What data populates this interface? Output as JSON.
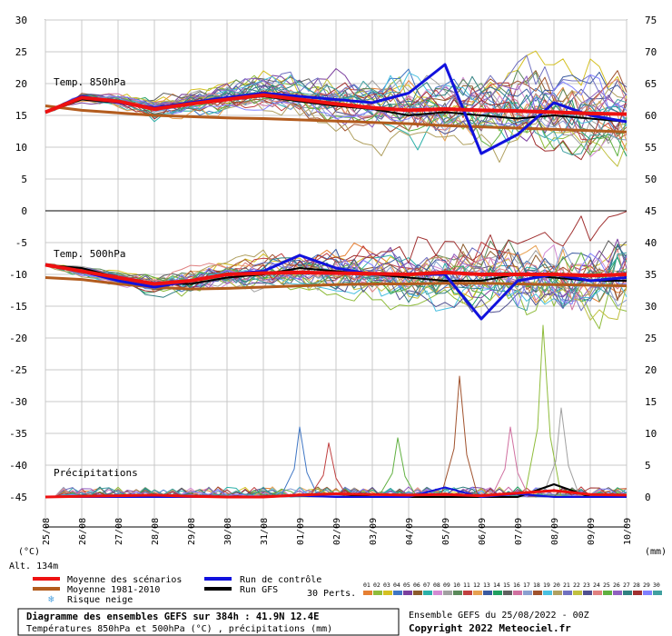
{
  "chart_data": {
    "type": "line",
    "dates": [
      "25/08",
      "26/08",
      "27/08",
      "28/08",
      "29/08",
      "30/08",
      "31/08",
      "01/09",
      "02/09",
      "03/09",
      "04/09",
      "05/09",
      "06/09",
      "07/09",
      "08/09",
      "09/09",
      "10/09"
    ],
    "left_axis": {
      "unit_label": "(°C)",
      "ticks": [
        30,
        25,
        20,
        15,
        10,
        5,
        0,
        -5,
        -10,
        -15,
        -20,
        -25,
        -30,
        -35,
        -40,
        -45
      ],
      "range": [
        -45,
        30
      ]
    },
    "right_axis": {
      "unit_label": "(mm)",
      "upper_ticks": [
        75,
        70,
        65,
        60,
        55,
        50,
        45
      ],
      "middle_ticks": [
        40,
        35,
        30,
        25,
        20,
        15,
        10,
        5,
        0
      ]
    },
    "panels": [
      {
        "label": "Temp. 850hPa",
        "unit": "°C",
        "mean": [
          15.5,
          17.8,
          17.2,
          16.0,
          16.8,
          17.5,
          18.2,
          17.5,
          16.8,
          16.2,
          15.8,
          16.0,
          15.8,
          15.7,
          15.5,
          15.3,
          15.2
        ],
        "climatology": [
          16.5,
          15.8,
          15.4,
          15.0,
          14.8,
          14.6,
          14.5,
          14.3,
          14.1,
          13.9,
          13.7,
          13.4,
          13.2,
          13.0,
          12.8,
          12.6,
          12.4
        ],
        "control": [
          15.5,
          18.0,
          17.0,
          16.2,
          17.0,
          17.8,
          18.5,
          18.0,
          17.5,
          17.0,
          18.5,
          23.0,
          9.0,
          12.0,
          17.0,
          15.0,
          14.0
        ],
        "gfs": [
          15.5,
          17.5,
          17.0,
          16.0,
          17.0,
          17.5,
          18.0,
          17.2,
          16.5,
          16.0,
          15.0,
          15.5,
          15.0,
          14.5,
          15.0,
          14.5,
          14.0
        ]
      },
      {
        "label": "Temp. 500hPa",
        "unit": "°C",
        "mean": [
          -8.5,
          -9.5,
          -10.5,
          -11.5,
          -11.0,
          -10.0,
          -9.8,
          -9.7,
          -9.8,
          -9.9,
          -10.0,
          -9.7,
          -10.0,
          -10.0,
          -10.0,
          -10.2,
          -10.0
        ],
        "climatology": [
          -10.5,
          -10.8,
          -11.5,
          -12.0,
          -12.3,
          -12.2,
          -12.0,
          -11.8,
          -11.6,
          -11.5,
          -11.5,
          -11.4,
          -11.4,
          -11.5,
          -11.6,
          -11.7,
          -11.8
        ],
        "control": [
          -8.5,
          -9.5,
          -11.0,
          -12.0,
          -11.0,
          -10.0,
          -9.5,
          -7.0,
          -9.0,
          -10.0,
          -10.0,
          -10.0,
          -17.0,
          -11.0,
          -10.0,
          -11.0,
          -10.5
        ],
        "gfs": [
          -8.5,
          -9.0,
          -10.5,
          -11.5,
          -11.5,
          -10.5,
          -10.0,
          -9.0,
          -9.5,
          -10.0,
          -10.5,
          -11.0,
          -11.0,
          -10.0,
          -10.5,
          -11.0,
          -11.0
        ]
      },
      {
        "label": "Précipitations",
        "unit": "mm",
        "mean": [
          0,
          0.1,
          0.2,
          0.3,
          0.1,
          0.0,
          0.0,
          0.3,
          0.5,
          0.4,
          0.3,
          0.4,
          0.2,
          0.6,
          1.0,
          0.4,
          0.3
        ],
        "control": [
          0,
          0,
          0,
          0,
          0,
          0,
          0,
          0.2,
          0,
          0,
          0,
          1.5,
          0,
          0.5,
          0,
          0,
          0
        ],
        "gfs": [
          0,
          0,
          0,
          0,
          0,
          0,
          0,
          0.3,
          0.5,
          0,
          0,
          0,
          0,
          0,
          2.0,
          0,
          0
        ],
        "peaks": [
          {
            "x": 7.0,
            "mm": 11.0
          },
          {
            "x": 7.8,
            "mm": 8.5
          },
          {
            "x": 11.4,
            "mm": 19.0
          },
          {
            "x": 9.7,
            "mm": 9.3
          },
          {
            "x": 13.7,
            "mm": 27.0
          },
          {
            "x": 14.2,
            "mm": 14.0
          },
          {
            "x": 12.8,
            "mm": 11.0
          }
        ]
      }
    ],
    "members_count": 30,
    "member_labels": [
      "01",
      "02",
      "03",
      "04",
      "05",
      "06",
      "07",
      "08",
      "09",
      "10",
      "11",
      "12",
      "13",
      "14",
      "15",
      "16",
      "17",
      "18",
      "19",
      "20",
      "21",
      "22",
      "23",
      "24",
      "25",
      "26",
      "27",
      "28",
      "29",
      "30"
    ],
    "member_colors": [
      "#e67f33",
      "#8fbc3b",
      "#d4c020",
      "#3f76c4",
      "#7b3f9e",
      "#8b5a2b",
      "#2bb0a8",
      "#d38ad3",
      "#a0a0a0",
      "#5a8a5a",
      "#c04040",
      "#e6a050",
      "#3a5aa0",
      "#20a060",
      "#606060",
      "#d070a0",
      "#8aa0d0",
      "#a0522d",
      "#4ac0e0",
      "#b0a060",
      "#7070c0",
      "#c0c040",
      "#505090",
      "#e08080",
      "#60b040",
      "#9060c0",
      "#308080",
      "#a03030",
      "#8080ff",
      "#40a0a0"
    ],
    "legend": {
      "mean": "Moyenne des scénarios",
      "climatology": "Moyenne 1981-2010",
      "control": "Run de contrôle",
      "gfs": "Run GFS",
      "snow": "Risque neige",
      "perts": "30 Perts."
    },
    "altitude": "Alt. 134m",
    "colors": {
      "mean": "#ee1111",
      "climatology": "#b35c1e",
      "control": "#1111dd",
      "gfs": "#000000",
      "grid": "#c8c8c8",
      "snow": "#4fa3e0"
    }
  },
  "footer": {
    "title": "Diagramme des ensembles GEFS sur 384h : 41.9N 12.4E",
    "subtitle": "Températures 850hPa et 500hPa (°C) , précipitations (mm)",
    "run": "Ensemble GEFS du 25/08/2022 - 00Z",
    "copyright": "Copyright 2022 Meteociel.fr"
  }
}
